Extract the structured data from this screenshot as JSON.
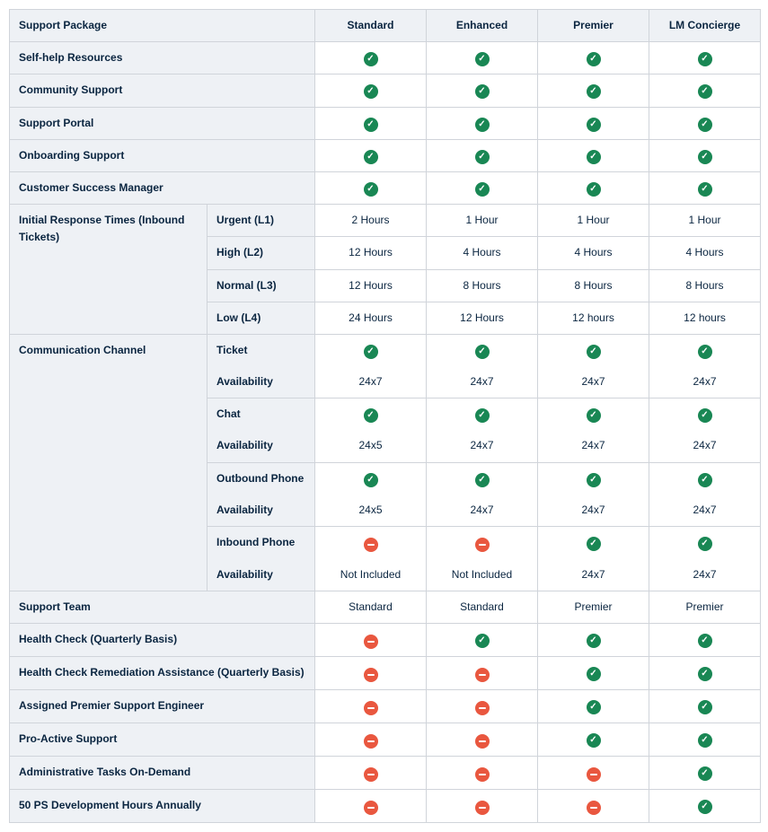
{
  "colors": {
    "header_bg": "#eef1f5",
    "border": "#d0d4da",
    "text": "#0a2540",
    "check_bg": "#198754",
    "dash_bg": "#e9573f",
    "cell_bg": "#ffffff"
  },
  "header": {
    "feature": "Support Package",
    "plans": [
      "Standard",
      "Enhanced",
      "Premier",
      "LM Concierge"
    ]
  },
  "simpleRows": [
    {
      "label": "Self-help Resources",
      "vals": [
        "check",
        "check",
        "check",
        "check"
      ]
    },
    {
      "label": "Community Support",
      "vals": [
        "check",
        "check",
        "check",
        "check"
      ]
    },
    {
      "label": "Support Portal",
      "vals": [
        "check",
        "check",
        "check",
        "check"
      ]
    },
    {
      "label": "Onboarding Support",
      "vals": [
        "check",
        "check",
        "check",
        "check"
      ]
    },
    {
      "label": "Customer Success Manager",
      "vals": [
        "check",
        "check",
        "check",
        "check"
      ]
    }
  ],
  "responseTimes": {
    "groupLabel": "Initial Response Times (Inbound Tickets)",
    "rows": [
      {
        "sub": "Urgent (L1)",
        "vals": [
          "2 Hours",
          "1 Hour",
          "1 Hour",
          "1 Hour"
        ]
      },
      {
        "sub": "High (L2)",
        "vals": [
          "12 Hours",
          "4 Hours",
          "4 Hours",
          "4 Hours"
        ]
      },
      {
        "sub": "Normal (L3)",
        "vals": [
          "12 Hours",
          "8 Hours",
          "8 Hours",
          "8 Hours"
        ]
      },
      {
        "sub": "Low (L4)",
        "vals": [
          "24 Hours",
          "12 Hours",
          "12 hours",
          "12 hours"
        ]
      }
    ]
  },
  "commChannel": {
    "groupLabel": "Communication Channel",
    "availabilityLabel": "Availability",
    "pairs": [
      {
        "sub": "Ticket",
        "icons": [
          "check",
          "check",
          "check",
          "check"
        ],
        "avail": [
          "24x7",
          "24x7",
          "24x7",
          "24x7"
        ]
      },
      {
        "sub": "Chat",
        "icons": [
          "check",
          "check",
          "check",
          "check"
        ],
        "avail": [
          "24x5",
          "24x7",
          "24x7",
          "24x7"
        ]
      },
      {
        "sub": "Outbound Phone",
        "icons": [
          "check",
          "check",
          "check",
          "check"
        ],
        "avail": [
          "24x5",
          "24x7",
          "24x7",
          "24x7"
        ]
      },
      {
        "sub": "Inbound Phone",
        "icons": [
          "dash",
          "dash",
          "check",
          "check"
        ],
        "avail": [
          "Not Included",
          "Not Included",
          "24x7",
          "24x7"
        ]
      }
    ]
  },
  "supportTeam": {
    "label": "Support Team",
    "vals": [
      "Standard",
      "Standard",
      "Premier",
      "Premier"
    ]
  },
  "bottomRows": [
    {
      "label": "Health Check (Quarterly Basis)",
      "vals": [
        "dash",
        "check",
        "check",
        "check"
      ]
    },
    {
      "label": "Health Check Remediation Assistance (Quarterly Basis)",
      "vals": [
        "dash",
        "dash",
        "check",
        "check"
      ]
    },
    {
      "label": "Assigned Premier Support Engineer",
      "vals": [
        "dash",
        "dash",
        "check",
        "check"
      ]
    },
    {
      "label": "Pro-Active Support",
      "vals": [
        "dash",
        "dash",
        "check",
        "check"
      ]
    },
    {
      "label": "Administrative Tasks On-Demand",
      "vals": [
        "dash",
        "dash",
        "dash",
        "check"
      ]
    },
    {
      "label": "50 PS Development Hours Annually",
      "vals": [
        "dash",
        "dash",
        "dash",
        "check"
      ]
    }
  ]
}
